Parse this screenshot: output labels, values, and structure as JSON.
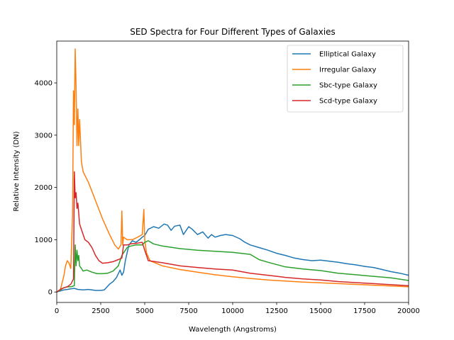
{
  "chart_data": {
    "type": "line",
    "title": "SED Spectra for Four Different Types of Galaxies",
    "xlabel": "Wavelength (Angstroms)",
    "ylabel": "Relative Intensity (DN)",
    "xlim": [
      0,
      20000
    ],
    "ylim": [
      -200,
      4800
    ],
    "xticks": [
      0,
      2500,
      5000,
      7500,
      10000,
      12500,
      15000,
      17500,
      20000
    ],
    "yticks": [
      0,
      1000,
      2000,
      3000,
      4000
    ],
    "grid": false,
    "legend_position": "top-right",
    "series": [
      {
        "name": "Elliptical Galaxy",
        "color": "#1f77b4",
        "x": [
          0,
          200,
          400,
          600,
          800,
          1000,
          1200,
          1500,
          1800,
          2000,
          2200,
          2500,
          2700,
          3000,
          3200,
          3400,
          3600,
          3700,
          3800,
          3900,
          4000,
          4100,
          4300,
          4500,
          4700,
          4860,
          5000,
          5200,
          5500,
          5800,
          6100,
          6300,
          6500,
          6700,
          7000,
          7200,
          7500,
          7700,
          8000,
          8300,
          8600,
          8800,
          9000,
          9300,
          9600,
          10000,
          10400,
          10700,
          11000,
          11500,
          12000,
          12500,
          13000,
          13500,
          14000,
          14500,
          15000,
          15500,
          16000,
          16500,
          17000,
          17500,
          18000,
          18500,
          19000,
          19500,
          20000
        ],
        "values": [
          0,
          20,
          40,
          50,
          60,
          70,
          50,
          40,
          50,
          40,
          30,
          30,
          40,
          150,
          200,
          280,
          420,
          320,
          380,
          600,
          750,
          900,
          980,
          950,
          1000,
          1050,
          1080,
          1200,
          1250,
          1220,
          1300,
          1280,
          1180,
          1260,
          1280,
          1100,
          1250,
          1200,
          1100,
          1150,
          1030,
          1100,
          1050,
          1080,
          1100,
          1080,
          1020,
          950,
          900,
          850,
          800,
          740,
          700,
          650,
          620,
          600,
          610,
          590,
          570,
          540,
          520,
          490,
          470,
          430,
          390,
          360,
          320
        ]
      },
      {
        "name": "Irregular Galaxy",
        "color": "#ff7f0e",
        "x": [
          0,
          200,
          400,
          500,
          600,
          700,
          800,
          900,
          950,
          1000,
          1050,
          1100,
          1150,
          1200,
          1250,
          1300,
          1350,
          1400,
          1500,
          1800,
          2200,
          2600,
          3000,
          3300,
          3500,
          3650,
          3700,
          3750,
          3800,
          4000,
          4300,
          4600,
          4860,
          4950,
          5000,
          5100,
          5300,
          6000,
          7000,
          8000,
          9000,
          10000,
          11000,
          12000,
          13000,
          14000,
          15000,
          16000,
          17000,
          18000,
          19000,
          20000
        ],
        "values": [
          0,
          40,
          300,
          500,
          600,
          550,
          450,
          1500,
          3850,
          3200,
          4650,
          3900,
          2800,
          3500,
          2800,
          3300,
          2900,
          2500,
          2300,
          2100,
          1750,
          1400,
          1100,
          900,
          820,
          900,
          1550,
          900,
          1050,
          1000,
          1000,
          1050,
          1100,
          1580,
          1000,
          750,
          600,
          500,
          430,
          380,
          330,
          290,
          260,
          230,
          210,
          190,
          175,
          160,
          145,
          130,
          115,
          100
        ]
      },
      {
        "name": "Sbc-type Galaxy",
        "color": "#2ca02c",
        "x": [
          0,
          200,
          400,
          600,
          800,
          1000,
          1050,
          1100,
          1150,
          1200,
          1250,
          1300,
          1400,
          1500,
          1700,
          2000,
          2300,
          2600,
          2900,
          3200,
          3500,
          3700,
          3900,
          4000,
          4200,
          4500,
          4860,
          5000,
          5200,
          5500,
          6000,
          7000,
          8000,
          9000,
          10000,
          11000,
          11500,
          12000,
          13000,
          14000,
          15000,
          16000,
          17000,
          18000,
          19000,
          20000
        ],
        "values": [
          0,
          40,
          80,
          100,
          100,
          120,
          900,
          500,
          800,
          600,
          700,
          500,
          450,
          400,
          420,
          380,
          350,
          350,
          360,
          400,
          500,
          700,
          800,
          850,
          880,
          900,
          900,
          950,
          980,
          920,
          880,
          830,
          800,
          780,
          760,
          720,
          620,
          570,
          480,
          440,
          410,
          360,
          330,
          300,
          270,
          220
        ]
      },
      {
        "name": "Scd-type Galaxy",
        "color": "#d62728",
        "x": [
          0,
          200,
          400,
          600,
          800,
          950,
          1000,
          1050,
          1100,
          1150,
          1200,
          1250,
          1300,
          1400,
          1500,
          1600,
          1800,
          2000,
          2200,
          2400,
          2600,
          2900,
          3200,
          3500,
          3700,
          3800,
          4000,
          4200,
          4500,
          4860,
          5000,
          5200,
          6000,
          7000,
          8000,
          9000,
          10000,
          11000,
          12000,
          13000,
          14000,
          15000,
          16000,
          17000,
          18000,
          19000,
          20000
        ],
        "values": [
          0,
          50,
          80,
          100,
          150,
          250,
          2300,
          1800,
          1900,
          1600,
          1700,
          1500,
          1300,
          1200,
          1100,
          1000,
          950,
          850,
          700,
          600,
          550,
          560,
          580,
          620,
          650,
          900,
          900,
          920,
          930,
          950,
          800,
          600,
          560,
          500,
          470,
          440,
          420,
          360,
          320,
          280,
          250,
          230,
          200,
          180,
          160,
          140,
          120
        ]
      }
    ]
  }
}
